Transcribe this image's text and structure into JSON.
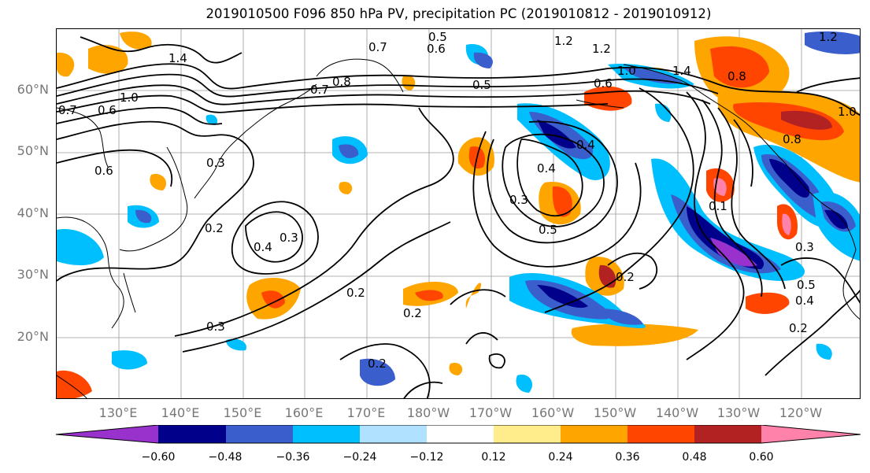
{
  "title": "2019010500 F096 850 hPa PV, precipitation PC (2019010812 - 2019010912)",
  "lat_labels": [
    "60°N",
    "50°N",
    "40°N",
    "30°N",
    "20°N"
  ],
  "lon_labels": [
    "130°E",
    "140°E",
    "150°E",
    "160°E",
    "170°E",
    "180°W",
    "170°W",
    "160°W",
    "150°W",
    "140°W",
    "130°W",
    "120°W"
  ],
  "colorbar": {
    "ticks": [
      "−0.60",
      "−0.48",
      "−0.36",
      "−0.24",
      "−0.12",
      "0.12",
      "0.24",
      "0.36",
      "0.48",
      "0.60"
    ],
    "colors": [
      "#9932cc",
      "#00008b",
      "#3a5fcd",
      "#00bfff",
      "#b0e2ff",
      "#ffffff",
      "#ffec8b",
      "#ffa500",
      "#ff4500",
      "#b22222",
      "#ff82ab"
    ]
  },
  "contour_labels": [
    "1.4",
    "1.0",
    "0.7",
    "0.6",
    "0.5",
    "0.7",
    "0.6",
    "1.2",
    "1.2",
    "1.2",
    "0.8",
    "0.5",
    "0.7",
    "1.0",
    "0.6",
    "1.4",
    "0.8",
    "1.0",
    "0.8",
    "0.6",
    "0.3",
    "0.2",
    "0.4",
    "0.3",
    "0.3",
    "0.2",
    "0.2",
    "0.2",
    "0.3",
    "0.5",
    "0.4",
    "0.1",
    "0.3",
    "0.5",
    "0.4",
    "0.2",
    "0.4",
    "0.2"
  ]
}
